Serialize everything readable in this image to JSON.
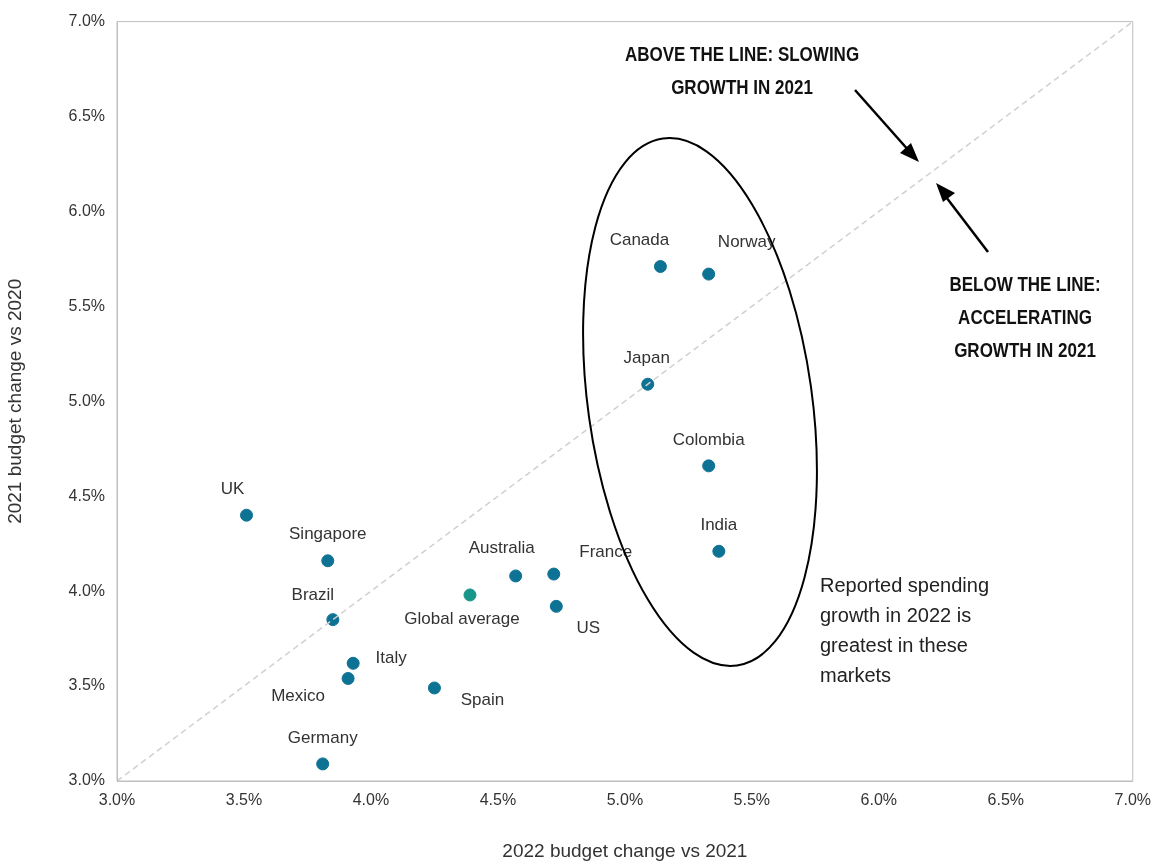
{
  "chart_data": {
    "type": "scatter",
    "xlabel": "2022 budget change vs 2021",
    "ylabel": "2021 budget change vs 2020",
    "xlim": [
      3,
      7
    ],
    "ylim": [
      3,
      7
    ],
    "xticks": [
      {
        "value": 3,
        "label": "3.0%"
      },
      {
        "value": 3.5,
        "label": "3.5%"
      },
      {
        "value": 4,
        "label": "4.0%"
      },
      {
        "value": 4.5,
        "label": "4.5%"
      },
      {
        "value": 5,
        "label": "5.0%"
      },
      {
        "value": 5.5,
        "label": "5.5%"
      },
      {
        "value": 6,
        "label": "6.0%"
      },
      {
        "value": 6.5,
        "label": "6.5%"
      },
      {
        "value": 7,
        "label": "7.0%"
      }
    ],
    "yticks": [
      {
        "value": 3,
        "label": "3.0%"
      },
      {
        "value": 3.5,
        "label": "3.5%"
      },
      {
        "value": 4,
        "label": "4.0%"
      },
      {
        "value": 4.5,
        "label": "4.5%"
      },
      {
        "value": 5,
        "label": "5.0%"
      },
      {
        "value": 5.5,
        "label": "5.5%"
      },
      {
        "value": 6,
        "label": "6.0%"
      },
      {
        "value": 6.5,
        "label": "6.5%"
      },
      {
        "value": 7,
        "label": "7.0%"
      }
    ],
    "grid": false,
    "legend": false,
    "marker": "circle",
    "series": [
      {
        "type": "line",
        "color": "#d0d0d0",
        "line_style": "dashed",
        "marker": "none",
        "x": [
          3,
          7
        ],
        "values": [
          3,
          7
        ]
      },
      {
        "name": "UK",
        "color": "#0e7295",
        "x": [
          3.51
        ],
        "values": [
          4.4
        ]
      },
      {
        "name": "Singapore",
        "color": "#0e7295",
        "x": [
          3.83
        ],
        "values": [
          4.16
        ]
      },
      {
        "name": "Brazil",
        "color": "#0e7295",
        "x": [
          3.85
        ],
        "values": [
          3.85
        ]
      },
      {
        "name": "Italy",
        "color": "#0e7295",
        "x": [
          3.93
        ],
        "values": [
          3.62
        ]
      },
      {
        "name": "Mexico",
        "color": "#0e7295",
        "x": [
          3.91
        ],
        "values": [
          3.54
        ]
      },
      {
        "name": "Germany",
        "color": "#0e7295",
        "x": [
          3.81
        ],
        "values": [
          3.09
        ]
      },
      {
        "name": "Spain",
        "color": "#0e7295",
        "x": [
          4.25
        ],
        "values": [
          3.49
        ]
      },
      {
        "name": "Global average",
        "color": "#18968a",
        "x": [
          4.39
        ],
        "values": [
          3.98
        ]
      },
      {
        "name": "Australia",
        "color": "#0e7295",
        "x": [
          4.57
        ],
        "values": [
          4.08
        ]
      },
      {
        "name": "France",
        "color": "#0e7295",
        "x": [
          4.72
        ],
        "values": [
          4.09
        ]
      },
      {
        "name": "US",
        "color": "#0e7295",
        "x": [
          4.73
        ],
        "values": [
          3.92
        ]
      },
      {
        "name": "Canada",
        "color": "#0e7295",
        "x": [
          5.14
        ],
        "values": [
          5.71
        ]
      },
      {
        "name": "Norway",
        "color": "#0e7295",
        "x": [
          5.33
        ],
        "values": [
          5.67
        ]
      },
      {
        "name": "Japan",
        "color": "#0e7295",
        "x": [
          5.09
        ],
        "values": [
          5.09
        ]
      },
      {
        "name": "Colombia",
        "color": "#0e7295",
        "x": [
          5.33
        ],
        "values": [
          4.66
        ]
      },
      {
        "name": "India",
        "color": "#0e7295",
        "x": [
          5.37
        ],
        "values": [
          4.21
        ]
      }
    ],
    "annotations": [
      "ABOVE THE LINE: SLOWING GROWTH IN 2021",
      "BELOW THE LINE: ACCELERATING GROWTH IN 2021",
      "Reported spending growth in 2022 is greatest in these markets"
    ]
  }
}
